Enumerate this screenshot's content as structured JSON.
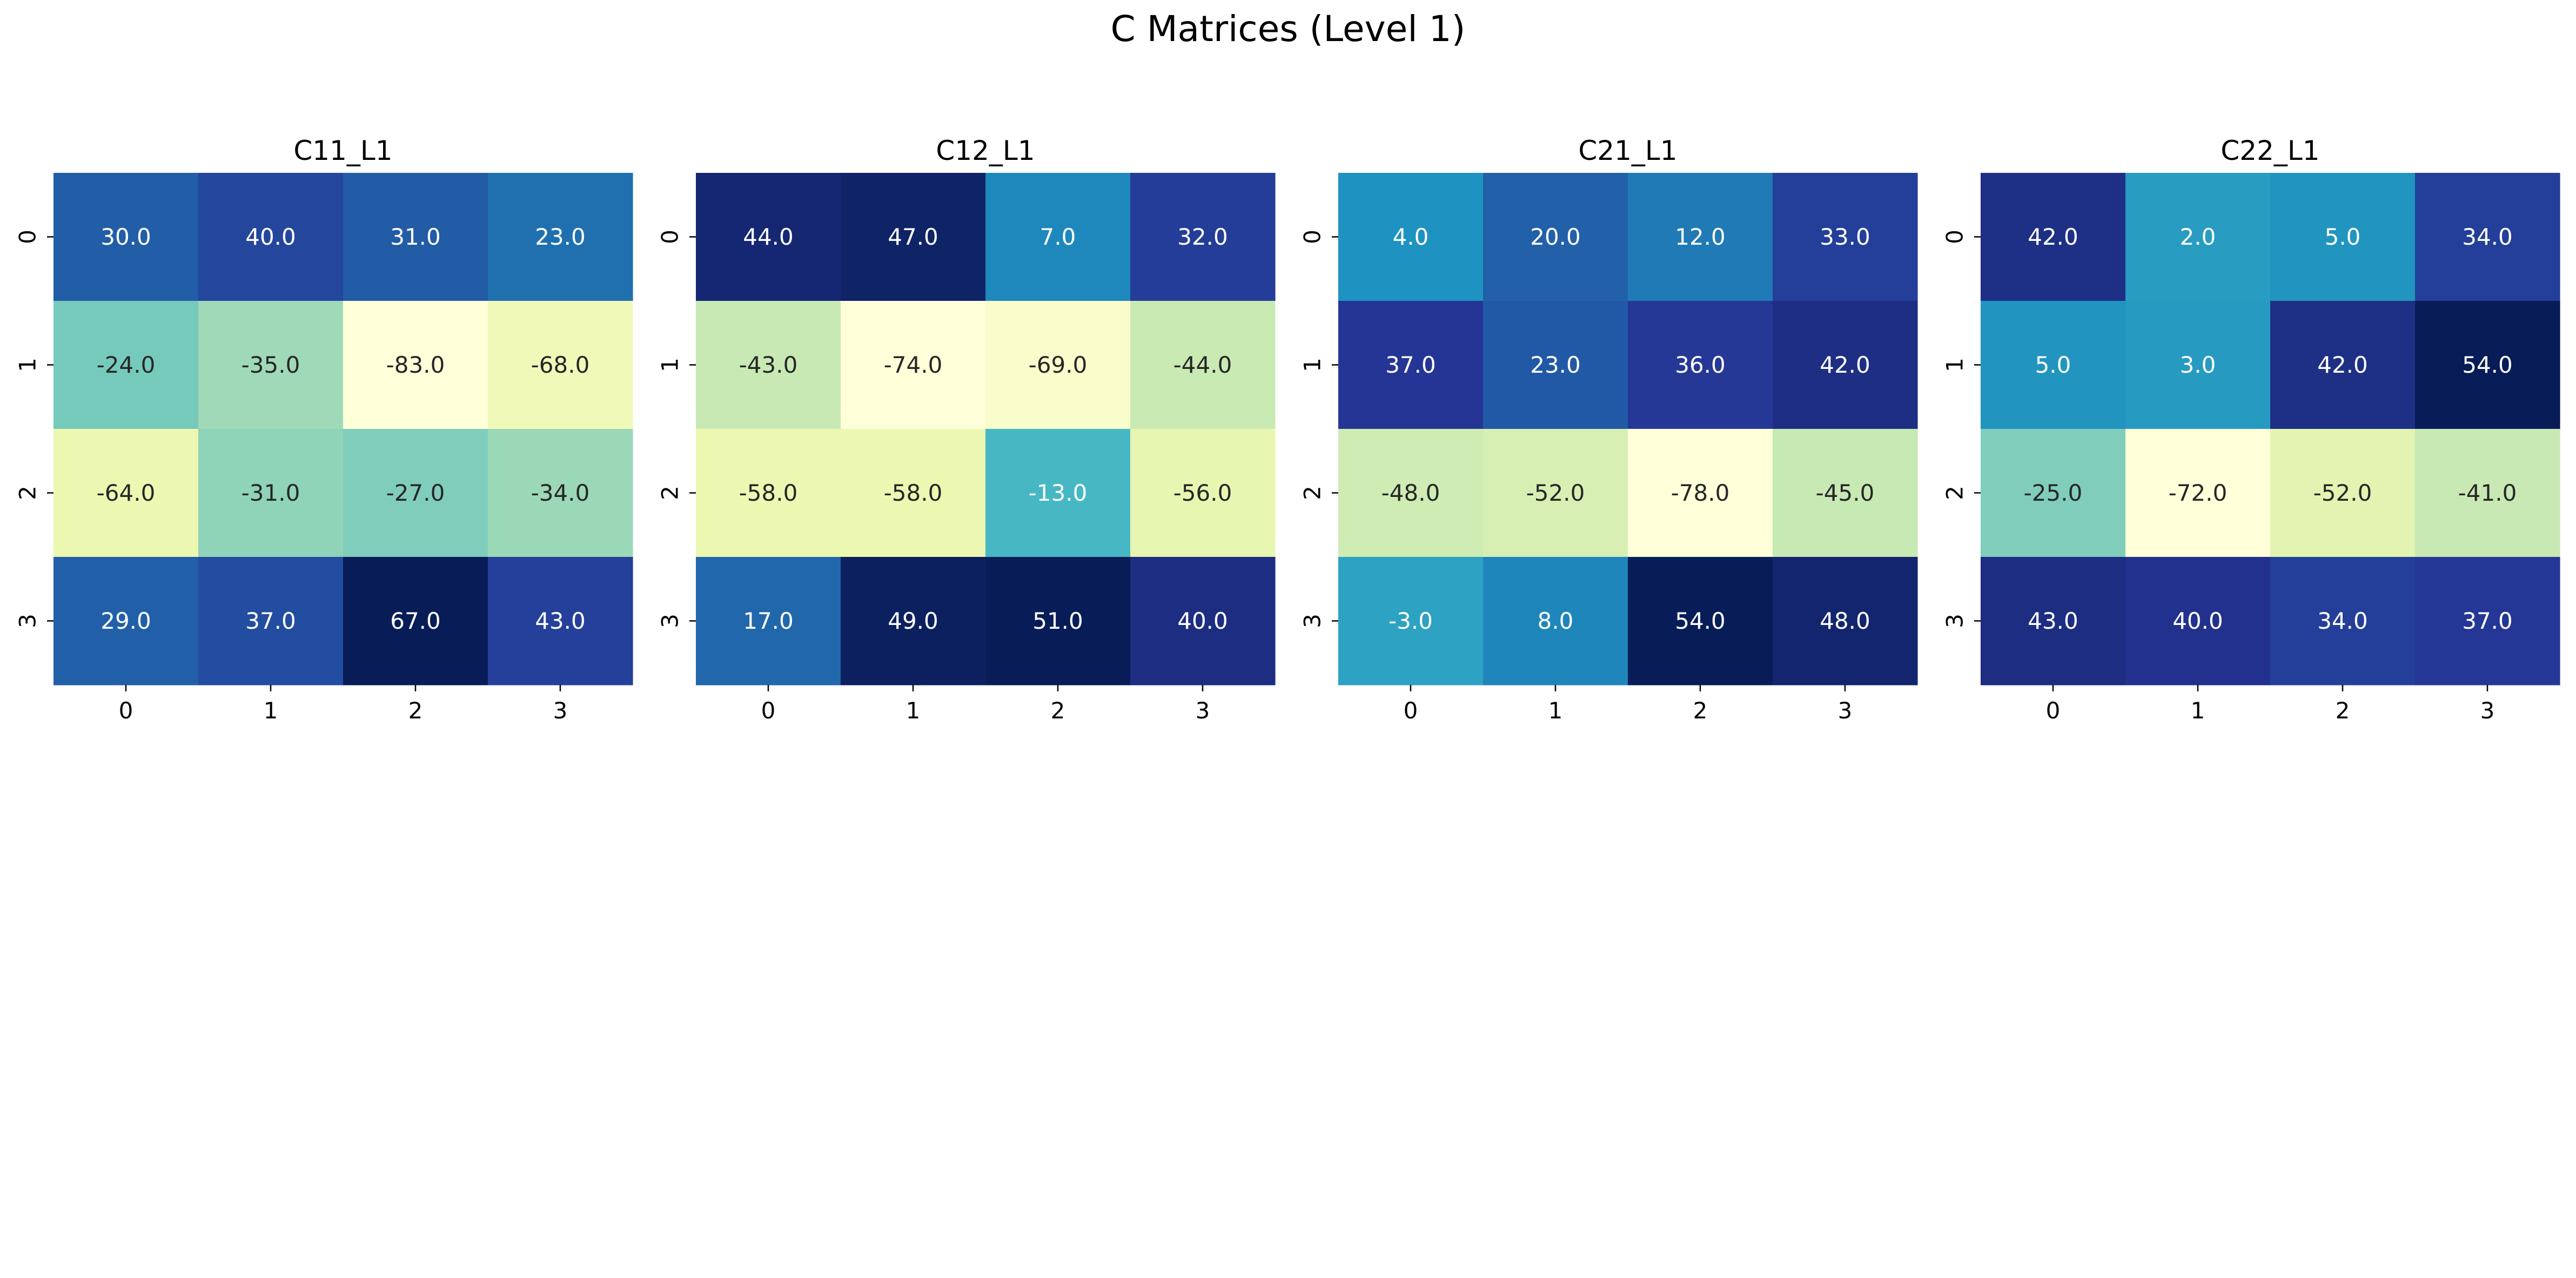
{
  "figure": {
    "title": "C Matrices (Level 1)"
  },
  "chart_data": [
    {
      "type": "heatmap",
      "title": "C11_L1",
      "x_ticks": [
        "0",
        "1",
        "2",
        "3"
      ],
      "y_ticks": [
        "0",
        "1",
        "2",
        "3"
      ],
      "colormap": "YlGnBu",
      "colorbar": false,
      "values": [
        [
          30.0,
          40.0,
          31.0,
          23.0
        ],
        [
          -24.0,
          -35.0,
          -83.0,
          -68.0
        ],
        [
          -64.0,
          -31.0,
          -27.0,
          -34.0
        ],
        [
          29.0,
          37.0,
          67.0,
          43.0
        ]
      ]
    },
    {
      "type": "heatmap",
      "title": "C12_L1",
      "x_ticks": [
        "0",
        "1",
        "2",
        "3"
      ],
      "y_ticks": [
        "0",
        "1",
        "2",
        "3"
      ],
      "colormap": "YlGnBu",
      "colorbar": false,
      "values": [
        [
          44.0,
          47.0,
          7.0,
          32.0
        ],
        [
          -43.0,
          -74.0,
          -69.0,
          -44.0
        ],
        [
          -58.0,
          -58.0,
          -13.0,
          -56.0
        ],
        [
          17.0,
          49.0,
          51.0,
          40.0
        ]
      ]
    },
    {
      "type": "heatmap",
      "title": "C21_L1",
      "x_ticks": [
        "0",
        "1",
        "2",
        "3"
      ],
      "y_ticks": [
        "0",
        "1",
        "2",
        "3"
      ],
      "colormap": "YlGnBu",
      "colorbar": false,
      "values": [
        [
          4.0,
          20.0,
          12.0,
          33.0
        ],
        [
          37.0,
          23.0,
          36.0,
          42.0
        ],
        [
          -48.0,
          -52.0,
          -78.0,
          -45.0
        ],
        [
          -3.0,
          8.0,
          54.0,
          48.0
        ]
      ]
    },
    {
      "type": "heatmap",
      "title": "C22_L1",
      "x_ticks": [
        "0",
        "1",
        "2",
        "3"
      ],
      "y_ticks": [
        "0",
        "1",
        "2",
        "3"
      ],
      "colormap": "YlGnBu",
      "colorbar": false,
      "values": [
        [
          42.0,
          2.0,
          5.0,
          34.0
        ],
        [
          5.0,
          3.0,
          42.0,
          54.0
        ],
        [
          -25.0,
          -72.0,
          -52.0,
          -41.0
        ],
        [
          43.0,
          40.0,
          34.0,
          37.0
        ]
      ]
    }
  ]
}
